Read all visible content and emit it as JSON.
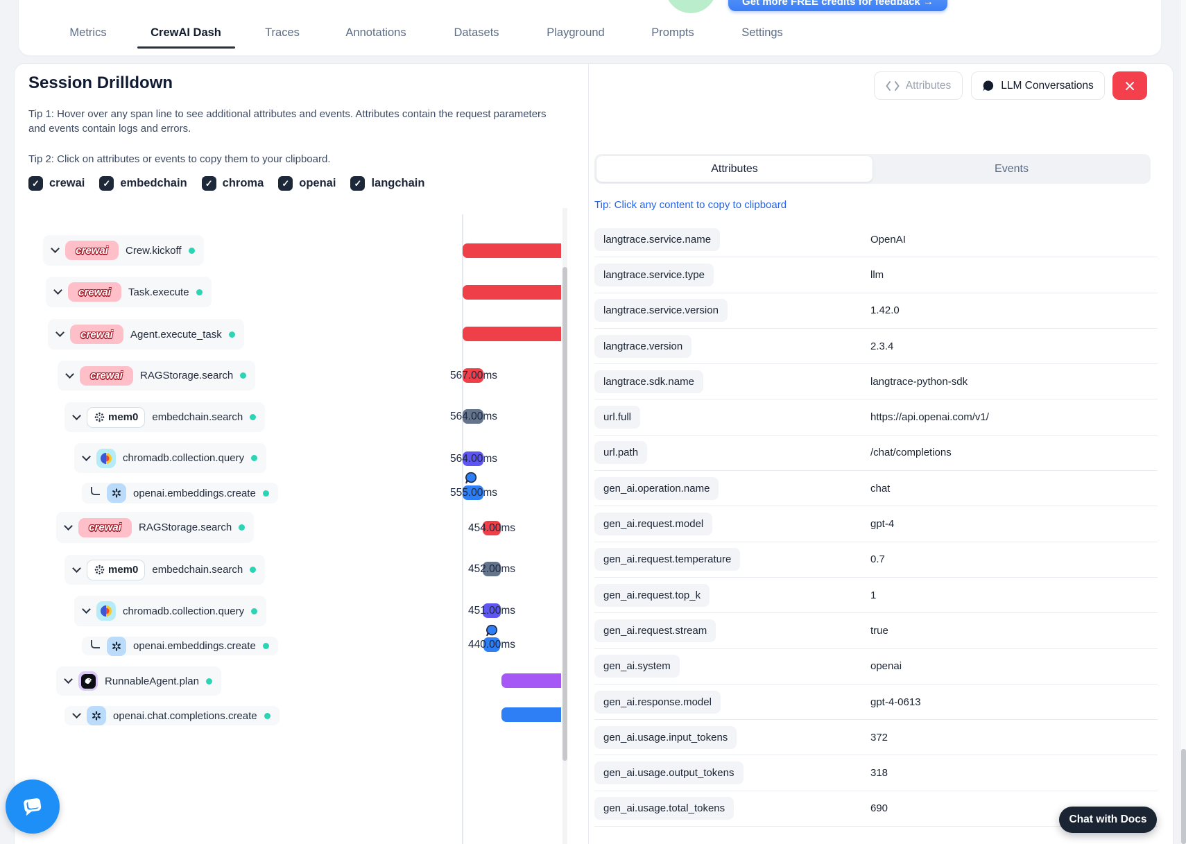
{
  "colors": {
    "red": "#ef4049",
    "slate": "#64748b",
    "indigo": "#5f55f0",
    "blue": "#2e7ef5",
    "purple": "#a658f6",
    "teal": "#2bd4b5",
    "link": "#2563eb",
    "close_red": "#f43f4c",
    "checkbox": "#1d2839",
    "crewai_pink": "#ffbfc9",
    "chroma_cyan": "#b6ecf7",
    "openai_blue": "#badbfa",
    "langchain_purple": "#dcc8f8"
  },
  "nav": {
    "tabs": [
      "Metrics",
      "CrewAI Dash",
      "Traces",
      "Annotations",
      "Datasets",
      "Playground",
      "Prompts",
      "Settings"
    ],
    "active_tab": "CrewAI Dash",
    "credits_button": "Get more FREE credits for feedback  →"
  },
  "session": {
    "title": "Session Drilldown",
    "tip1": "Tip 1: Hover over any span line to see additional attributes and events. Attributes contain the request parameters and events contain logs and errors.",
    "tip2": "Tip 2: Click on attributes or events to copy them to your clipboard.",
    "filters": [
      "crewai",
      "embedchain",
      "chroma",
      "openai",
      "langchain"
    ],
    "mem0_label": "mem0",
    "spans": [
      {
        "label": "Crew.kickoff",
        "logo": "crewai",
        "duration": "",
        "bar_color": "red",
        "status": "success"
      },
      {
        "label": "Task.execute",
        "logo": "crewai",
        "duration": "",
        "bar_color": "red",
        "status": "success"
      },
      {
        "label": "Agent.execute_task",
        "logo": "crewai",
        "duration": "",
        "bar_color": "red",
        "status": "success"
      },
      {
        "label": "RAGStorage.search",
        "logo": "crewai",
        "duration": "567.00ms",
        "bar_color": "red",
        "status": "success"
      },
      {
        "label": "embedchain.search",
        "logo": "mem0",
        "duration": "564.00ms",
        "bar_color": "slate",
        "status": "success"
      },
      {
        "label": "chromadb.collection.query",
        "logo": "chroma",
        "duration": "564.00ms",
        "bar_color": "indigo",
        "status": "success"
      },
      {
        "label": "openai.embeddings.create",
        "logo": "openai",
        "duration": "555.00ms",
        "bar_color": "blue",
        "status": "success"
      },
      {
        "label": "RAGStorage.search",
        "logo": "crewai",
        "duration": "454.00ms",
        "bar_color": "red",
        "status": "success"
      },
      {
        "label": "embedchain.search",
        "logo": "mem0",
        "duration": "452.00ms",
        "bar_color": "slate",
        "status": "success"
      },
      {
        "label": "chromadb.collection.query",
        "logo": "chroma",
        "duration": "451.00ms",
        "bar_color": "indigo",
        "status": "success"
      },
      {
        "label": "openai.embeddings.create",
        "logo": "openai",
        "duration": "440.00ms",
        "bar_color": "blue",
        "status": "success"
      },
      {
        "label": "RunnableAgent.plan",
        "logo": "langchain",
        "duration": "",
        "bar_color": "purple",
        "status": "success"
      },
      {
        "label": "openai.chat.completions.create",
        "logo": "openai",
        "duration": "",
        "bar_color": "blue",
        "status": "success"
      }
    ]
  },
  "detail": {
    "attributes_button": "Attributes",
    "llm_button": "LLM Conversations",
    "tabs": [
      "Attributes",
      "Events"
    ],
    "active_tab": "Attributes",
    "tip": "Tip: Click any content to copy to clipboard",
    "attributes": [
      {
        "key": "langtrace.service.name",
        "value": "OpenAI"
      },
      {
        "key": "langtrace.service.type",
        "value": "llm"
      },
      {
        "key": "langtrace.service.version",
        "value": "1.42.0"
      },
      {
        "key": "langtrace.version",
        "value": "2.3.4"
      },
      {
        "key": "langtrace.sdk.name",
        "value": "langtrace-python-sdk"
      },
      {
        "key": "url.full",
        "value": "https://api.openai.com/v1/"
      },
      {
        "key": "url.path",
        "value": "/chat/completions"
      },
      {
        "key": "gen_ai.operation.name",
        "value": "chat"
      },
      {
        "key": "gen_ai.request.model",
        "value": "gpt-4"
      },
      {
        "key": "gen_ai.request.temperature",
        "value": "0.7"
      },
      {
        "key": "gen_ai.request.top_k",
        "value": "1"
      },
      {
        "key": "gen_ai.request.stream",
        "value": "true"
      },
      {
        "key": "gen_ai.system",
        "value": "openai"
      },
      {
        "key": "gen_ai.response.model",
        "value": "gpt-4-0613"
      },
      {
        "key": "gen_ai.usage.input_tokens",
        "value": "372"
      },
      {
        "key": "gen_ai.usage.output_tokens",
        "value": "318"
      },
      {
        "key": "gen_ai.usage.total_tokens",
        "value": "690"
      }
    ]
  },
  "chat_with_docs": "Chat with Docs"
}
